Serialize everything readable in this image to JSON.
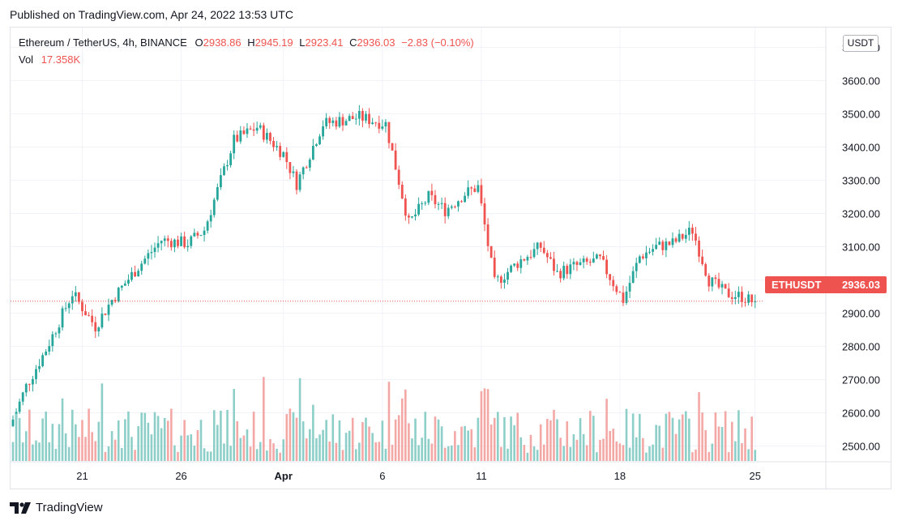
{
  "published": "Published on TradingView.com, Apr 24, 2022 13:53 UTC",
  "legend": {
    "symbol": "Ethereum / TetherUS, 4h, BINANCE",
    "o_label": "O",
    "o_value": "2938.86",
    "h_label": "H",
    "h_value": "2945.19",
    "l_label": "L",
    "l_value": "2923.41",
    "c_label": "C",
    "c_value": "2936.03",
    "change": "−2.83 (−0.10%)",
    "vol_label": "Vol",
    "vol_value": "17.358K"
  },
  "price_axis_unit": "USDT",
  "last_price_tag": {
    "symbol": "ETHUSDT",
    "value": "2936.03"
  },
  "footer": {
    "brand": "TradingView"
  },
  "colors": {
    "up": "#26a69a",
    "down": "#ef5350",
    "up_vol": "#8dcfc8",
    "down_vol": "#f4a8a6",
    "grid": "#f0f3fa"
  },
  "chart_data": {
    "type": "candlestick",
    "title": "Ethereum / TetherUS, 4h, BINANCE",
    "y_ticks": [
      "2500.00",
      "2600.00",
      "2700.00",
      "2800.00",
      "2900.00",
      "3000.00",
      "3100.00",
      "3200.00",
      "3300.00",
      "3400.00",
      "3500.00",
      "3600.00",
      "3700.00"
    ],
    "ylim": [
      2450,
      3710
    ],
    "x_ticks": [
      {
        "label": "21",
        "index": 21
      },
      {
        "label": "26",
        "index": 51
      },
      {
        "label": "Apr",
        "index": 82
      },
      {
        "label": "6",
        "index": 112
      },
      {
        "label": "11",
        "index": 142
      },
      {
        "label": "18",
        "index": 184
      },
      {
        "label": "25",
        "index": 225
      }
    ],
    "grid": true,
    "last_price": 2936.03,
    "close_anchors": [
      [
        0,
        2580
      ],
      [
        4,
        2680
      ],
      [
        10,
        2790
      ],
      [
        18,
        2960
      ],
      [
        25,
        2860
      ],
      [
        30,
        2940
      ],
      [
        38,
        3040
      ],
      [
        45,
        3120
      ],
      [
        53,
        3110
      ],
      [
        58,
        3150
      ],
      [
        67,
        3420
      ],
      [
        74,
        3460
      ],
      [
        82,
        3380
      ],
      [
        86,
        3290
      ],
      [
        94,
        3470
      ],
      [
        105,
        3490
      ],
      [
        113,
        3470
      ],
      [
        116,
        3340
      ],
      [
        120,
        3170
      ],
      [
        126,
        3250
      ],
      [
        131,
        3210
      ],
      [
        137,
        3260
      ],
      [
        141,
        3280
      ],
      [
        146,
        2990
      ],
      [
        154,
        3060
      ],
      [
        160,
        3100
      ],
      [
        165,
        3020
      ],
      [
        170,
        3040
      ],
      [
        178,
        3060
      ],
      [
        185,
        2940
      ],
      [
        190,
        3070
      ],
      [
        195,
        3100
      ],
      [
        200,
        3110
      ],
      [
        206,
        3150
      ],
      [
        211,
        3000
      ],
      [
        216,
        2960
      ],
      [
        221,
        2950
      ],
      [
        224,
        2936
      ]
    ],
    "volume_note": "volume bars at bottom, scale ~0–30K"
  }
}
